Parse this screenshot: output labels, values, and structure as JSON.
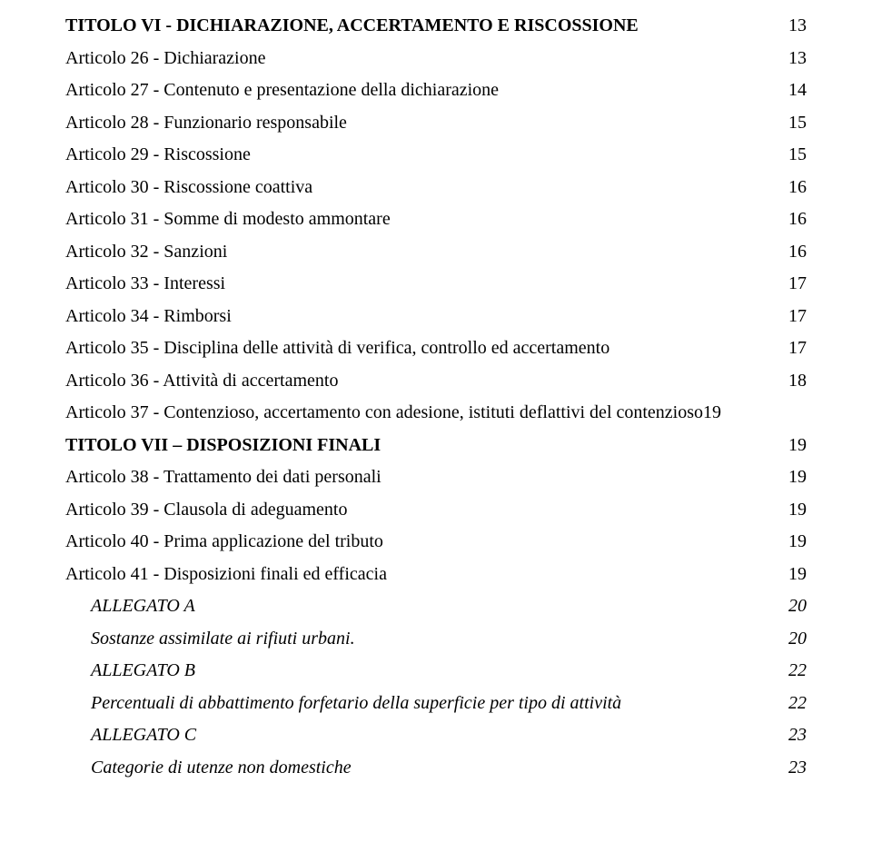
{
  "fonts": {
    "family": "Times New Roman",
    "body_size_pt": 15,
    "bold_weight": 700
  },
  "colors": {
    "text": "#000000",
    "background": "#ffffff"
  },
  "entries": [
    {
      "kind": "titolo",
      "indent": 0,
      "label": "TITOLO VI - DICHIARAZIONE, ACCERTAMENTO E RISCOSSIONE",
      "page": "13"
    },
    {
      "kind": "articolo",
      "indent": 0,
      "label": "Articolo 26 - Dichiarazione",
      "page": "13"
    },
    {
      "kind": "articolo",
      "indent": 0,
      "label": "Articolo 27 - Contenuto e presentazione della dichiarazione",
      "page": "14"
    },
    {
      "kind": "articolo",
      "indent": 0,
      "label": "Articolo 28 - Funzionario responsabile",
      "page": "15"
    },
    {
      "kind": "articolo",
      "indent": 0,
      "label": "Articolo 29 - Riscossione",
      "page": "15"
    },
    {
      "kind": "articolo",
      "indent": 0,
      "label": "Articolo 30 - Riscossione coattiva",
      "page": "16"
    },
    {
      "kind": "articolo",
      "indent": 0,
      "label": "Articolo 31 - Somme di modesto ammontare",
      "page": "16"
    },
    {
      "kind": "articolo",
      "indent": 0,
      "label": "Articolo 32 - Sanzioni",
      "page": "16"
    },
    {
      "kind": "articolo",
      "indent": 0,
      "label": "Articolo 33 - Interessi",
      "page": "17"
    },
    {
      "kind": "articolo",
      "indent": 0,
      "label": "Articolo 34 - Rimborsi",
      "page": "17"
    },
    {
      "kind": "articolo",
      "indent": 0,
      "label": "Articolo 35 - Disciplina delle attività di verifica, controllo ed accertamento",
      "page": "17"
    },
    {
      "kind": "articolo",
      "indent": 0,
      "label": "Articolo 36 - Attività di accertamento",
      "page": "18"
    },
    {
      "kind": "articolo-nolead",
      "indent": 0,
      "label": "Articolo 37 - Contenzioso, accertamento con adesione, istituti deflattivi del contenzioso",
      "page": "19"
    },
    {
      "kind": "titolo",
      "indent": 0,
      "label": "TITOLO VII – DISPOSIZIONI FINALI",
      "page": "19"
    },
    {
      "kind": "articolo",
      "indent": 0,
      "label": "Articolo 38 - Trattamento dei dati personali",
      "page": "19"
    },
    {
      "kind": "articolo",
      "indent": 0,
      "label": "Articolo 39 - Clausola di adeguamento",
      "page": "19"
    },
    {
      "kind": "articolo",
      "indent": 0,
      "label": "Articolo 40 - Prima applicazione del tributo",
      "page": "19"
    },
    {
      "kind": "articolo",
      "indent": 0,
      "label": "Articolo 41 - Disposizioni finali ed efficacia",
      "page": "19"
    },
    {
      "kind": "allegato",
      "indent": 1,
      "label": "ALLEGATO A",
      "page": "20"
    },
    {
      "kind": "allegato",
      "indent": 1,
      "label": "Sostanze assimilate ai rifiuti urbani.",
      "page": "20"
    },
    {
      "kind": "allegato",
      "indent": 1,
      "label": "ALLEGATO B",
      "page": "22"
    },
    {
      "kind": "allegato",
      "indent": 1,
      "label": "Percentuali di abbattimento forfetario della superficie per tipo di attività",
      "page": "22"
    },
    {
      "kind": "allegato",
      "indent": 1,
      "label": "ALLEGATO C",
      "page": "23"
    },
    {
      "kind": "allegato",
      "indent": 1,
      "label": "Categorie di utenze non domestiche",
      "page": "23"
    }
  ]
}
